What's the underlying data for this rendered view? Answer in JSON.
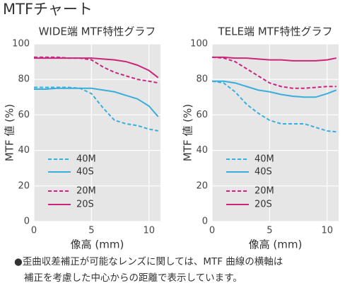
{
  "title": "MTFチャート",
  "chart_data": [
    {
      "type": "line",
      "title": "WIDE端 MTF特性グラフ",
      "x_label": "像高 (mm)",
      "y_label": "MTF 値 (%)",
      "x": [
        0,
        1,
        2,
        3,
        4,
        5,
        6,
        7,
        8,
        9,
        10,
        10.8
      ],
      "xlim": [
        0,
        11
      ],
      "xticks": [
        0,
        5,
        10
      ],
      "ylim": [
        0,
        100
      ],
      "yticks": [
        0,
        20,
        40,
        60,
        80,
        100
      ],
      "grid": true,
      "series": [
        {
          "name": "40M",
          "color": "#3aaedb",
          "dashed": true,
          "values": [
            75.5,
            75.5,
            75.5,
            75.5,
            75,
            72,
            64,
            57,
            55,
            54,
            52,
            51
          ]
        },
        {
          "name": "40S",
          "color": "#3aaedb",
          "dashed": false,
          "values": [
            74.5,
            74.5,
            75,
            75,
            75,
            75,
            74,
            73,
            71,
            69,
            65,
            59
          ]
        },
        {
          "name": "20M",
          "color": "#c9267c",
          "dashed": true,
          "values": [
            92.5,
            92.5,
            92.5,
            92,
            92,
            91,
            87,
            84,
            82,
            80,
            79,
            78
          ]
        },
        {
          "name": "20S",
          "color": "#c9267c",
          "dashed": false,
          "values": [
            92,
            92,
            92,
            92,
            92,
            92,
            91.5,
            91,
            90,
            88,
            85,
            81
          ]
        }
      ]
    },
    {
      "type": "line",
      "title": "TELE端 MTF特性グラフ",
      "x_label": "像高 (mm)",
      "y_label": "MTF 値 (%)",
      "x": [
        0,
        1,
        2,
        3,
        4,
        5,
        6,
        7,
        8,
        9,
        10,
        10.8
      ],
      "xlim": [
        0,
        11
      ],
      "xticks": [
        0,
        5,
        10
      ],
      "ylim": [
        0,
        100
      ],
      "yticks": [
        0,
        20,
        40,
        60,
        80,
        100
      ],
      "grid": true,
      "series": [
        {
          "name": "40M",
          "color": "#3aaedb",
          "dashed": true,
          "values": [
            79,
            78,
            73,
            66,
            61,
            57,
            55,
            55,
            55,
            53,
            51,
            50.5
          ]
        },
        {
          "name": "40S",
          "color": "#3aaedb",
          "dashed": false,
          "values": [
            79,
            79,
            78,
            76,
            74,
            73,
            71.5,
            70.5,
            70,
            70,
            72,
            74
          ]
        },
        {
          "name": "20M",
          "color": "#c9267c",
          "dashed": true,
          "values": [
            92.5,
            92,
            90,
            86,
            82,
            78,
            76,
            75,
            75,
            75.5,
            76,
            76
          ]
        },
        {
          "name": "20S",
          "color": "#c9267c",
          "dashed": false,
          "values": [
            92.5,
            92.5,
            92,
            92,
            91.5,
            91,
            91,
            90.5,
            90.5,
            90.5,
            91,
            92
          ]
        }
      ]
    }
  ],
  "footnote": [
    "●歪曲収差補正が可能なレンズに関しては、MTF 曲線の横軸は",
    "補正を考慮した中心からの距離で表示しています。"
  ]
}
